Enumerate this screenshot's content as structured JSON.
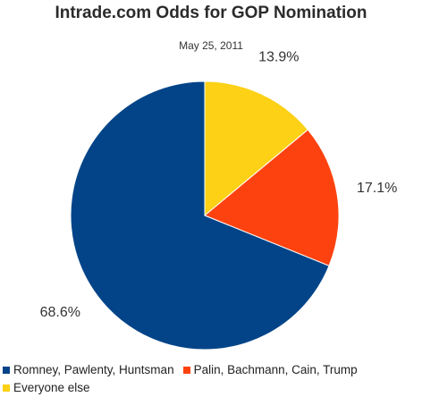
{
  "chart_data": {
    "type": "pie",
    "title": "Intrade.com Odds for GOP Nomination",
    "subtitle": "May 25, 2011",
    "slices": [
      {
        "name": "Everyone else",
        "value": 13.9,
        "label": "13.9%",
        "color": "#fcd116"
      },
      {
        "name": "Palin, Bachmann, Cain, Trump",
        "value": 17.1,
        "label": "17.1%",
        "color": "#fe420f"
      },
      {
        "name": "Romney, Pawlenty, Huntsman",
        "value": 68.6,
        "label": "68.6%",
        "color": "#034488"
      }
    ],
    "legend": [
      {
        "name": "Romney, Pawlenty, Huntsman",
        "color": "#034488"
      },
      {
        "name": "Palin, Bachmann, Cain, Trump",
        "color": "#fe420f"
      },
      {
        "name": "Everyone else",
        "color": "#fcd116"
      }
    ],
    "legend_position": "bottom"
  }
}
